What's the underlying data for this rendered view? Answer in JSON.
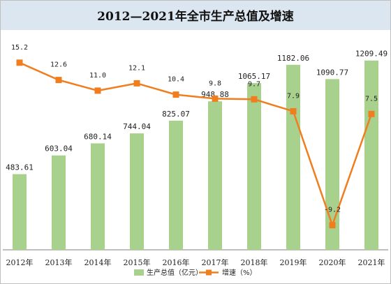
{
  "chart_data": {
    "type": "bar",
    "title": "2012—2021年全市生产总值及增速",
    "categories": [
      "2012年",
      "2013年",
      "2014年",
      "2015年",
      "2016年",
      "2017年",
      "2018年",
      "2019年",
      "2020年",
      "2021年"
    ],
    "series": [
      {
        "name": "生产总值（亿元）",
        "type": "bar",
        "values": [
          483.61,
          603.04,
          680.14,
          744.04,
          825.07,
          948.88,
          1065.17,
          1182.06,
          1090.77,
          1209.49
        ],
        "labels": [
          "483.61",
          "603.04",
          "680.14",
          "744.04",
          "825.07",
          "948.88",
          "1065.17",
          "1182.06",
          "1090.77",
          "1209.49"
        ],
        "color": "#a9d18e"
      },
      {
        "name": "增速（%）",
        "type": "line",
        "values": [
          15.2,
          12.6,
          11.0,
          12.1,
          10.4,
          9.8,
          9.7,
          7.9,
          -9.2,
          7.5
        ],
        "labels": [
          "15.2",
          "12.6",
          "11.0",
          "12.1",
          "10.4",
          "9.8",
          "9.7",
          "7.9",
          "-9.2",
          "7.5"
        ],
        "color": "#f07d1e"
      }
    ],
    "ylim_left": [
      0,
      1400
    ],
    "ylim_right": [
      -12.9,
      20
    ],
    "grid": false,
    "legend_position": "bottom"
  }
}
